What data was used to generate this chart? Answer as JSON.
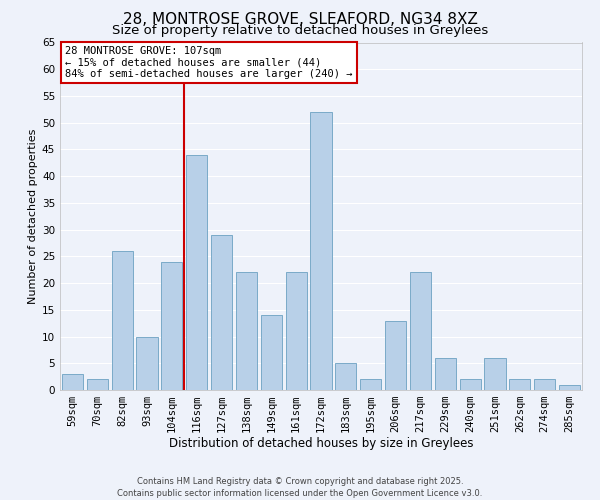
{
  "title": "28, MONTROSE GROVE, SLEAFORD, NG34 8XZ",
  "subtitle": "Size of property relative to detached houses in Greylees",
  "xlabel": "Distribution of detached houses by size in Greylees",
  "ylabel": "Number of detached properties",
  "categories": [
    "59sqm",
    "70sqm",
    "82sqm",
    "93sqm",
    "104sqm",
    "116sqm",
    "127sqm",
    "138sqm",
    "149sqm",
    "161sqm",
    "172sqm",
    "183sqm",
    "195sqm",
    "206sqm",
    "217sqm",
    "229sqm",
    "240sqm",
    "251sqm",
    "262sqm",
    "274sqm",
    "285sqm"
  ],
  "values": [
    3,
    2,
    26,
    10,
    24,
    44,
    29,
    22,
    14,
    22,
    52,
    5,
    2,
    13,
    22,
    6,
    2,
    6,
    2,
    2,
    1
  ],
  "bar_color": "#b8d0e8",
  "bar_edge_color": "#7aaac8",
  "vline_x_index": 4.5,
  "vline_color": "#cc0000",
  "annotation_line1": "28 MONTROSE GROVE: 107sqm",
  "annotation_line2": "← 15% of detached houses are smaller (44)",
  "annotation_line3": "84% of semi-detached houses are larger (240) →",
  "annotation_box_color": "#ffffff",
  "annotation_box_edge_color": "#cc0000",
  "ylim": [
    0,
    65
  ],
  "yticks": [
    0,
    5,
    10,
    15,
    20,
    25,
    30,
    35,
    40,
    45,
    50,
    55,
    60,
    65
  ],
  "bg_color": "#eef2fa",
  "grid_color": "#ffffff",
  "footer_line1": "Contains HM Land Registry data © Crown copyright and database right 2025.",
  "footer_line2": "Contains public sector information licensed under the Open Government Licence v3.0.",
  "title_fontsize": 11,
  "subtitle_fontsize": 9.5,
  "xlabel_fontsize": 8.5,
  "ylabel_fontsize": 8,
  "tick_fontsize": 7.5,
  "annotation_fontsize": 7.5,
  "footer_fontsize": 6
}
